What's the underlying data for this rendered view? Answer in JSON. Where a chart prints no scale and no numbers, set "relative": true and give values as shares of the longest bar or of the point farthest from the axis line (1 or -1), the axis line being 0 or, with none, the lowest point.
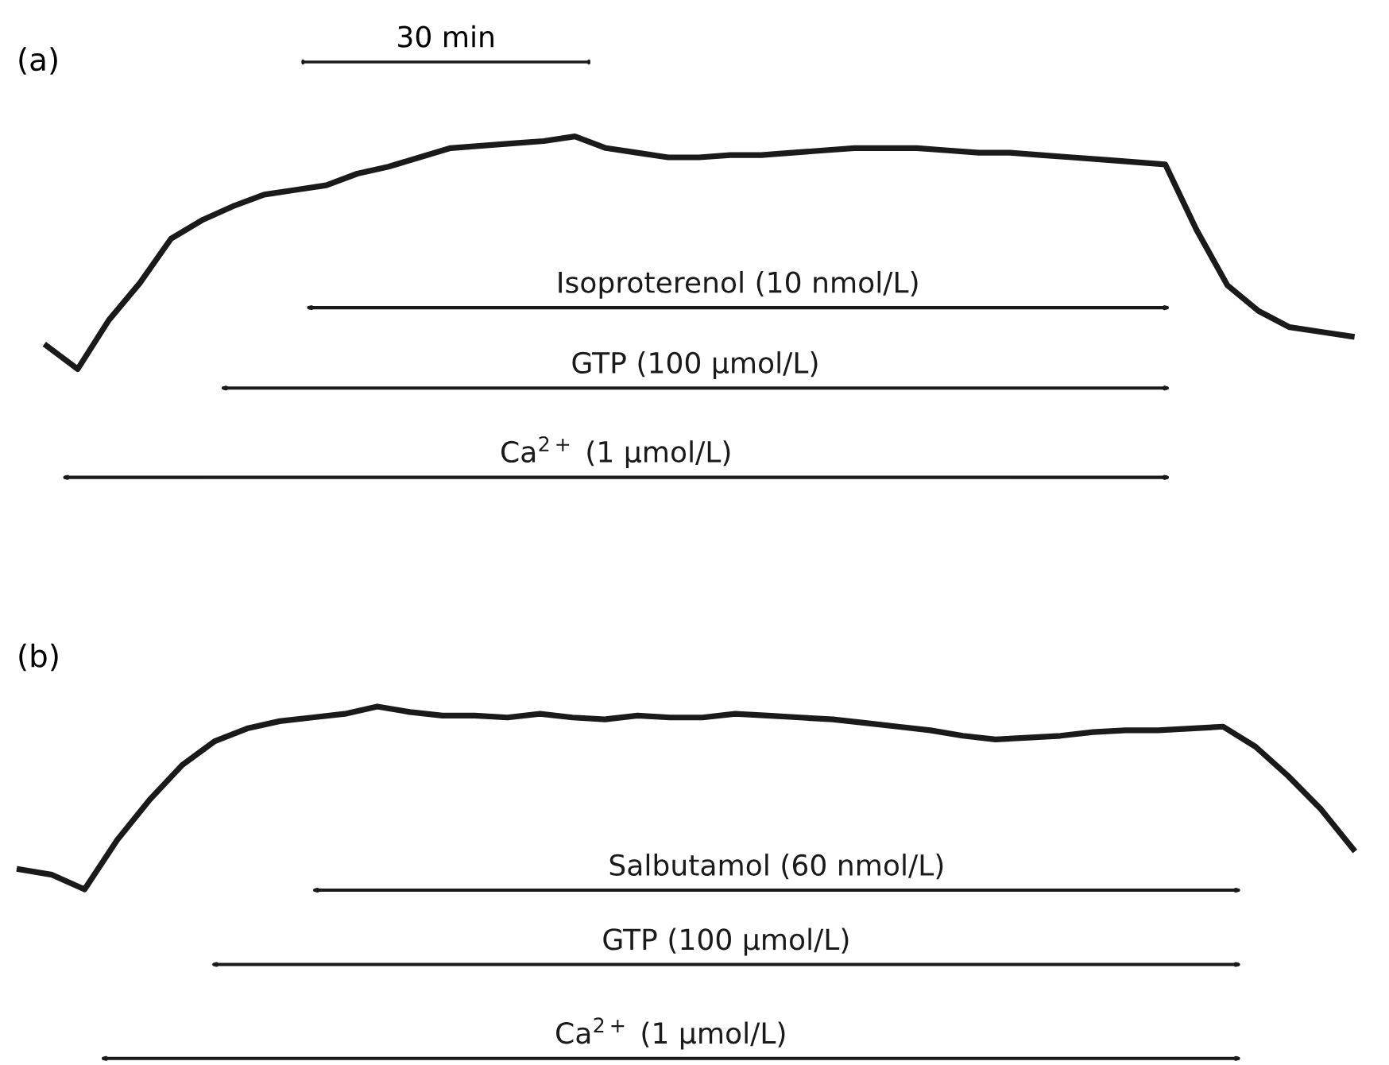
{
  "chart_data": [
    {
      "type": "line",
      "title": "(a)",
      "relative": true,
      "categories": [
        null,
        null,
        null,
        null,
        null,
        null,
        null,
        null,
        null,
        null,
        null,
        null,
        null,
        null,
        null,
        null,
        null,
        null,
        null,
        null,
        null,
        null,
        null,
        null,
        null,
        null,
        null,
        null,
        null,
        null,
        null,
        null,
        null,
        null,
        null,
        null,
        null,
        null,
        null,
        null,
        null,
        null,
        null
      ],
      "series": [
        {
          "color": "#1a1a1a",
          "values": [
            0.1,
            0,
            0.21,
            0.37,
            0.56,
            0.64,
            0.7,
            0.75,
            0.77,
            0.79,
            0.84,
            0.87,
            0.91,
            0.95,
            0.96,
            0.97,
            0.98,
            1,
            0.95,
            0.93,
            0.91,
            0.91,
            0.92,
            0.92,
            0.93,
            0.94,
            0.95,
            0.95,
            0.95,
            0.94,
            0.93,
            0.93,
            0.92,
            0.91,
            0.9,
            0.89,
            0.88,
            0.6,
            0.36,
            0.25,
            0.18,
            0.16,
            0.14
          ]
        }
      ],
      "annotations": [
        "30 min",
        "Isoproterenol (10 nmol/L)",
        "GTP (100 μmol/L)",
        "Ca$^{2+}$ (1 μmol/L)"
      ]
    },
    {
      "type": "line",
      "title": "(b)",
      "relative": true,
      "categories": [
        null,
        null,
        null,
        null,
        null,
        null,
        null,
        null,
        null,
        null,
        null,
        null,
        null,
        null,
        null,
        null,
        null,
        null,
        null,
        null,
        null,
        null,
        null,
        null,
        null,
        null,
        null,
        null,
        null,
        null,
        null,
        null,
        null,
        null,
        null,
        null,
        null,
        null,
        null,
        null,
        null,
        null
      ],
      "series": [
        {
          "color": "#1a1a1a",
          "values": [
            0.11,
            0.08,
            0,
            0.27,
            0.49,
            0.68,
            0.81,
            0.88,
            0.92,
            0.94,
            0.96,
            1,
            0.97,
            0.95,
            0.95,
            0.94,
            0.96,
            0.94,
            0.93,
            0.95,
            0.94,
            0.94,
            0.96,
            0.95,
            0.94,
            0.93,
            0.91,
            0.89,
            0.87,
            0.84,
            0.82,
            0.83,
            0.84,
            0.86,
            0.87,
            0.87,
            0.88,
            0.89,
            0.78,
            0.62,
            0.44,
            0.22
          ]
        }
      ],
      "annotations": [
        "Salbutamol (60 nmol/L)",
        "GTP (100 μmol/L)",
        "Ca$^{2+}$ (1 μmol/L)"
      ]
    }
  ]
}
